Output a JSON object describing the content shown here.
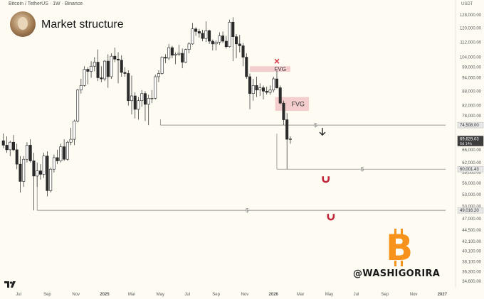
{
  "header": {
    "symbol": "Bitcoin / TetherUS · 1W · Binance",
    "currency": "USDT"
  },
  "title": "Market structure",
  "watermark": "@WASHIGORIRA",
  "logo": "tradingview-logo",
  "colors": {
    "up": "#ffffff",
    "down": "#2b2b2b",
    "fvg": "#f2c4c8",
    "level": "#7a7a7a",
    "magnet": "#c1273a",
    "bitcoin": "#f7931a"
  },
  "chart_data": {
    "type": "candlestick",
    "x_ticks": [
      {
        "label": "Jul",
        "year": 2024.49
      },
      {
        "label": "Sep",
        "year": 2024.66
      },
      {
        "label": "Nov",
        "year": 2024.83
      },
      {
        "label": "2025",
        "year": 2025.0
      },
      {
        "label": "Mar",
        "year": 2025.16
      },
      {
        "label": "May",
        "year": 2025.33
      },
      {
        "label": "Jul",
        "year": 2025.49
      },
      {
        "label": "Sep",
        "year": 2025.66
      },
      {
        "label": "Nov",
        "year": 2025.83
      },
      {
        "label": "2026",
        "year": 2026.0
      },
      {
        "label": "Mar",
        "year": 2026.16
      },
      {
        "label": "May",
        "year": 2026.33
      },
      {
        "label": "Jul",
        "year": 2026.49
      },
      {
        "label": "Sep",
        "year": 2026.66
      },
      {
        "label": "Nov",
        "year": 2026.83
      },
      {
        "label": "2027",
        "year": 2027.0
      }
    ],
    "y_ticks": [
      "128,000.00",
      "120,000.00",
      "112,000.00",
      "104,000.00",
      "99,000.00",
      "94,000.00",
      "88,000.00",
      "82,000.00",
      "78,000.00",
      "74,000.00",
      "70,000.00",
      "66,000.00",
      "62,000.00",
      "59,000.00",
      "56,000.00",
      "53,000.00",
      "50,000.00",
      "47,000.00",
      "44,500.00",
      "42,100.00",
      "40,100.00",
      "38,100.00",
      "36,300.00",
      "34,600.00"
    ],
    "y_log": true,
    "price_labels": [
      {
        "label": "74,508.00",
        "value": 74508
      },
      {
        "label": "69,629.03",
        "value": 69629.03,
        "sub": "6d 14h"
      },
      {
        "label": "60,001.43",
        "value": 60001.43
      },
      {
        "label": "49,016.20",
        "value": 49016.2
      }
    ],
    "annotations": [
      {
        "type": "fvg",
        "label": "FVG",
        "top": 99500,
        "bottom": 96800,
        "x0": 2025.86,
        "x1": 2026.1,
        "marker": "x"
      },
      {
        "type": "fvg",
        "label": "FVG",
        "top": 85500,
        "bottom": 79900,
        "x0": 2026.01,
        "x1": 2026.21
      },
      {
        "type": "level",
        "value": 74508,
        "x0": 2025.33,
        "x1": 2027.02,
        "marker": "$",
        "arrow": "down"
      },
      {
        "type": "level",
        "value": 60001.43,
        "x0": 2026.02,
        "x1": 2027.02,
        "marker": "$",
        "magnet": true
      },
      {
        "type": "level",
        "value": 49016.2,
        "x0": 2024.6,
        "x1": 2027.02,
        "marker": "$",
        "magnet": true
      }
    ],
    "candles": [
      [
        2024.4,
        69000,
        71500,
        66500,
        67500
      ],
      [
        2024.42,
        67500,
        70500,
        65000,
        66000
      ],
      [
        2024.44,
        66000,
        69000,
        64000,
        68500
      ],
      [
        2024.46,
        68500,
        71000,
        65500,
        66000
      ],
      [
        2024.48,
        66000,
        68000,
        60000,
        61500
      ],
      [
        2024.5,
        61500,
        64000,
        53500,
        56500
      ],
      [
        2024.52,
        56500,
        64000,
        55000,
        63000
      ],
      [
        2024.54,
        63000,
        68500,
        62000,
        67500
      ],
      [
        2024.56,
        67500,
        69500,
        62000,
        62500
      ],
      [
        2024.58,
        62500,
        65000,
        49000,
        58000
      ],
      [
        2024.6,
        58000,
        62000,
        55000,
        59500
      ],
      [
        2024.62,
        59500,
        61500,
        57000,
        58500
      ],
      [
        2024.64,
        58500,
        65000,
        57500,
        64000
      ],
      [
        2024.66,
        64000,
        65500,
        52500,
        54000
      ],
      [
        2024.68,
        54000,
        60500,
        53500,
        60000
      ],
      [
        2024.7,
        60000,
        64500,
        59000,
        63500
      ],
      [
        2024.72,
        63500,
        66000,
        61500,
        62500
      ],
      [
        2024.74,
        62500,
        68000,
        62000,
        67000
      ],
      [
        2024.76,
        67000,
        69500,
        62500,
        63000
      ],
      [
        2024.78,
        63000,
        69000,
        62500,
        68500
      ],
      [
        2024.8,
        68500,
        73500,
        67500,
        69500
      ],
      [
        2024.82,
        69500,
        76500,
        67500,
        76000
      ],
      [
        2024.84,
        76000,
        89000,
        75500,
        88500
      ],
      [
        2024.86,
        88500,
        93500,
        87000,
        90500
      ],
      [
        2024.88,
        90500,
        99500,
        90000,
        98000
      ],
      [
        2024.9,
        98000,
        99000,
        91000,
        97000
      ],
      [
        2024.92,
        97000,
        102000,
        94000,
        99500
      ],
      [
        2024.94,
        99500,
        104000,
        97000,
        101500
      ],
      [
        2024.96,
        101500,
        108000,
        92500,
        94000
      ],
      [
        2024.98,
        94000,
        99500,
        92000,
        93500
      ],
      [
        2025.0,
        93500,
        102500,
        92500,
        102000
      ],
      [
        2025.02,
        102000,
        105500,
        89500,
        94500
      ],
      [
        2025.04,
        94500,
        106000,
        93500,
        104500
      ],
      [
        2025.06,
        104500,
        109000,
        101500,
        103000
      ],
      [
        2025.08,
        103000,
        106500,
        91500,
        102500
      ],
      [
        2025.1,
        102500,
        105000,
        94500,
        96500
      ],
      [
        2025.12,
        96500,
        99000,
        94500,
        96000
      ],
      [
        2025.14,
        96000,
        97500,
        82000,
        84000
      ],
      [
        2025.16,
        84000,
        95000,
        78500,
        86000
      ],
      [
        2025.18,
        86000,
        87500,
        77000,
        80500
      ],
      [
        2025.2,
        80500,
        85500,
        76500,
        84000
      ],
      [
        2025.22,
        84000,
        88500,
        81500,
        87000
      ],
      [
        2025.24,
        87000,
        88000,
        76000,
        82500
      ],
      [
        2025.26,
        82500,
        86500,
        74500,
        85000
      ],
      [
        2025.28,
        85000,
        88500,
        83000,
        85000
      ],
      [
        2025.3,
        85000,
        95500,
        84500,
        94500
      ],
      [
        2025.32,
        94500,
        97500,
        92000,
        96000
      ],
      [
        2025.34,
        96000,
        104500,
        95500,
        104000
      ],
      [
        2025.36,
        104000,
        105500,
        101000,
        103500
      ],
      [
        2025.38,
        103500,
        111000,
        102500,
        109000
      ],
      [
        2025.4,
        109000,
        110000,
        103500,
        105000
      ],
      [
        2025.42,
        105000,
        106500,
        100500,
        105500
      ],
      [
        2025.44,
        105500,
        110500,
        104500,
        106000
      ],
      [
        2025.46,
        106000,
        108500,
        98500,
        101500
      ],
      [
        2025.48,
        101500,
        108500,
        101000,
        108000
      ],
      [
        2025.5,
        108000,
        112000,
        106000,
        111000
      ],
      [
        2025.52,
        111000,
        123000,
        110500,
        119500
      ],
      [
        2025.54,
        119500,
        120500,
        115500,
        118000
      ],
      [
        2025.56,
        118000,
        119500,
        114500,
        117000
      ],
      [
        2025.58,
        117000,
        119000,
        112500,
        114000
      ],
      [
        2025.6,
        114000,
        124000,
        112000,
        118500
      ],
      [
        2025.62,
        118500,
        119000,
        111000,
        112500
      ],
      [
        2025.64,
        112500,
        113500,
        107500,
        111000
      ],
      [
        2025.66,
        111000,
        113000,
        107500,
        112000
      ],
      [
        2025.68,
        112000,
        117500,
        110500,
        115500
      ],
      [
        2025.7,
        115500,
        118000,
        111500,
        112500
      ],
      [
        2025.72,
        112500,
        115500,
        108500,
        109500
      ],
      [
        2025.74,
        109500,
        125000,
        109000,
        123500
      ],
      [
        2025.76,
        123500,
        126500,
        102000,
        115000
      ],
      [
        2025.78,
        115000,
        116500,
        103500,
        111000
      ],
      [
        2025.8,
        111000,
        116000,
        106500,
        110000
      ],
      [
        2025.82,
        110000,
        111500,
        99500,
        104000
      ],
      [
        2025.84,
        104000,
        106000,
        93500,
        94500
      ],
      [
        2025.86,
        94500,
        96000,
        80500,
        87000
      ],
      [
        2025.88,
        87000,
        93500,
        84000,
        90500
      ],
      [
        2025.9,
        90500,
        94500,
        85500,
        88500
      ],
      [
        2025.92,
        88500,
        91500,
        86000,
        89500
      ],
      [
        2025.94,
        89500,
        90500,
        84500,
        88000
      ],
      [
        2025.96,
        88000,
        90000,
        86500,
        87500
      ],
      [
        2025.98,
        87500,
        90500,
        86500,
        88500
      ],
      [
        2026.0,
        88500,
        94500,
        87500,
        93500
      ],
      [
        2026.02,
        93500,
        97500,
        89000,
        89500
      ],
      [
        2026.04,
        89500,
        90500,
        82500,
        83000
      ],
      [
        2026.06,
        83000,
        84000,
        74500,
        76500
      ],
      [
        2026.08,
        76500,
        79000,
        60000,
        69500
      ],
      [
        2026.1,
        69500,
        70500,
        68000,
        69629
      ]
    ]
  }
}
